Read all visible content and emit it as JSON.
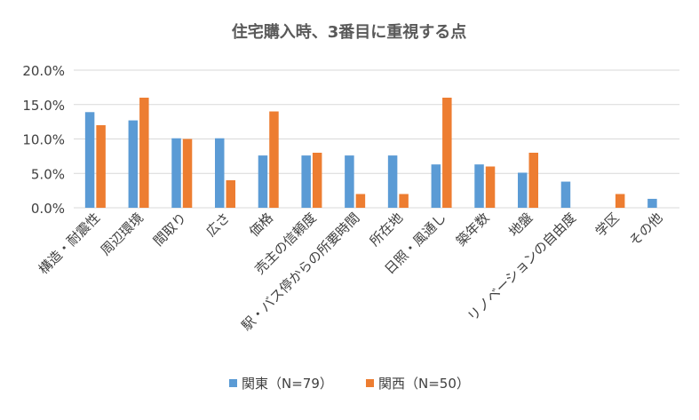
{
  "chart_data": {
    "type": "bar",
    "title": "住宅購入時、3番目に重視する点",
    "categories": [
      "構造・耐震性",
      "周辺環境",
      "間取り",
      "広さ",
      "価格",
      "売主の信頼度",
      "駅・バス停からの所要時間",
      "所在地",
      "日照・風通し",
      "築年数",
      "地盤",
      "リノベーションの自由度",
      "学区",
      "その他"
    ],
    "series": [
      {
        "name": "関東（N=79）",
        "color": "#5B9BD5",
        "values": [
          13.9,
          12.7,
          10.1,
          10.1,
          7.6,
          7.6,
          7.6,
          7.6,
          6.3,
          6.3,
          5.1,
          3.8,
          0.0,
          1.3
        ]
      },
      {
        "name": "関西（N=50）",
        "color": "#ED7D31",
        "values": [
          12.0,
          16.0,
          10.0,
          4.0,
          14.0,
          8.0,
          2.0,
          2.0,
          16.0,
          6.0,
          8.0,
          0.0,
          2.0,
          0.0
        ]
      }
    ],
    "ylim": [
      0,
      20
    ],
    "yticks": [
      "0.0%",
      "5.0%",
      "10.0%",
      "15.0%",
      "20.0%"
    ],
    "ytick_values": [
      0,
      5,
      10,
      15,
      20
    ],
    "grid": true,
    "legend_position": "bottom",
    "gridline_color": "#D9D9D9"
  }
}
